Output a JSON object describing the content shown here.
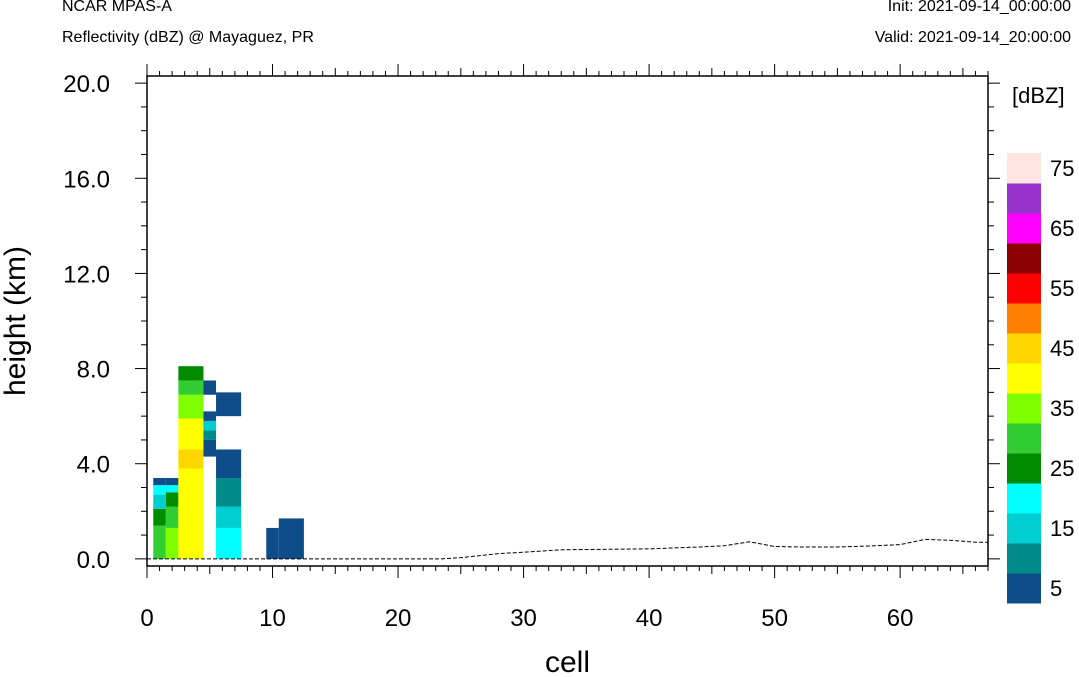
{
  "header": {
    "model": "NCAR MPAS-A",
    "field": "Reflectivity (dBZ) @ Mayaguez, PR",
    "init": "Init: 2021-09-14_00:00:00",
    "valid": "Valid: 2021-09-14_20:00:00"
  },
  "chart_data": {
    "type": "heatmap",
    "title": "Reflectivity (dBZ) @ Mayaguez, PR",
    "xlabel": "cell",
    "ylabel": "height (km)",
    "xlim": [
      0,
      67
    ],
    "ylim": [
      -0.3,
      20.3
    ],
    "x_ticks": [
      0,
      10,
      20,
      30,
      40,
      50,
      60
    ],
    "y_ticks": [
      0.0,
      4.0,
      8.0,
      12.0,
      16.0,
      20.0
    ],
    "x_tick_labels": [
      "0",
      "10",
      "20",
      "30",
      "40",
      "50",
      "60"
    ],
    "y_tick_labels": [
      "0.0",
      "4.0",
      "8.0",
      "12.0",
      "16.0",
      "20.0"
    ],
    "colorbar": {
      "unit_label": "[dBZ]",
      "bounds": [
        0,
        5,
        10,
        15,
        20,
        25,
        30,
        35,
        40,
        45,
        50,
        55,
        60,
        65,
        70,
        75
      ],
      "colors": [
        "#0f4c8a",
        "#008b8b",
        "#00ced1",
        "#00ffff",
        "#008b00",
        "#32cd32",
        "#7fff00",
        "#ffff00",
        "#ffd700",
        "#ff7f00",
        "#ff0000",
        "#8b0000",
        "#ff00ff",
        "#9932cc",
        "#ffe4e1"
      ],
      "tick_labels": [
        "5",
        "15",
        "25",
        "35",
        "45",
        "55",
        "65",
        "75"
      ]
    },
    "cells": [
      {
        "x0": 0.5,
        "x1": 1.5,
        "y0": 0.0,
        "y1": 1.4,
        "dbz": 28
      },
      {
        "x0": 0.5,
        "x1": 1.5,
        "y0": 1.4,
        "y1": 2.1,
        "dbz": 23
      },
      {
        "x0": 0.5,
        "x1": 1.5,
        "y0": 2.1,
        "y1": 2.7,
        "dbz": 13
      },
      {
        "x0": 0.5,
        "x1": 1.5,
        "y0": 2.7,
        "y1": 3.1,
        "dbz": 18
      },
      {
        "x0": 0.5,
        "x1": 1.5,
        "y0": 3.1,
        "y1": 3.4,
        "dbz": 3
      },
      {
        "x0": 1.5,
        "x1": 2.5,
        "y0": 0.0,
        "y1": 1.3,
        "dbz": 33
      },
      {
        "x0": 1.5,
        "x1": 2.5,
        "y0": 1.3,
        "y1": 2.2,
        "dbz": 28
      },
      {
        "x0": 1.5,
        "x1": 2.5,
        "y0": 2.2,
        "y1": 2.8,
        "dbz": 23
      },
      {
        "x0": 1.5,
        "x1": 2.5,
        "y0": 2.8,
        "y1": 3.1,
        "dbz": 18
      },
      {
        "x0": 1.5,
        "x1": 2.5,
        "y0": 3.1,
        "y1": 3.4,
        "dbz": 3
      },
      {
        "x0": 2.5,
        "x1": 4.5,
        "y0": 0.0,
        "y1": 3.8,
        "dbz": 38
      },
      {
        "x0": 2.5,
        "x1": 4.5,
        "y0": 3.8,
        "y1": 4.6,
        "dbz": 43
      },
      {
        "x0": 2.5,
        "x1": 4.5,
        "y0": 4.6,
        "y1": 5.9,
        "dbz": 38
      },
      {
        "x0": 2.5,
        "x1": 4.5,
        "y0": 5.9,
        "y1": 6.9,
        "dbz": 33
      },
      {
        "x0": 2.5,
        "x1": 4.5,
        "y0": 6.9,
        "y1": 7.5,
        "dbz": 28
      },
      {
        "x0": 2.5,
        "x1": 4.5,
        "y0": 7.5,
        "y1": 8.1,
        "dbz": 23
      },
      {
        "x0": 4.5,
        "x1": 5.5,
        "y0": 4.3,
        "y1": 5.0,
        "dbz": 3
      },
      {
        "x0": 4.5,
        "x1": 5.5,
        "y0": 5.0,
        "y1": 5.4,
        "dbz": 8
      },
      {
        "x0": 4.5,
        "x1": 5.5,
        "y0": 5.4,
        "y1": 5.8,
        "dbz": 13
      },
      {
        "x0": 4.5,
        "x1": 5.5,
        "y0": 5.8,
        "y1": 6.2,
        "dbz": 3
      },
      {
        "x0": 4.5,
        "x1": 5.5,
        "y0": 6.9,
        "y1": 7.5,
        "dbz": 3
      },
      {
        "x0": 5.5,
        "x1": 7.5,
        "y0": 0.0,
        "y1": 1.3,
        "dbz": 18
      },
      {
        "x0": 5.5,
        "x1": 7.5,
        "y0": 1.3,
        "y1": 2.2,
        "dbz": 13
      },
      {
        "x0": 5.5,
        "x1": 7.5,
        "y0": 2.2,
        "y1": 3.4,
        "dbz": 8
      },
      {
        "x0": 5.5,
        "x1": 7.5,
        "y0": 3.4,
        "y1": 4.6,
        "dbz": 3
      },
      {
        "x0": 5.5,
        "x1": 7.5,
        "y0": 6.0,
        "y1": 7.0,
        "dbz": 3
      },
      {
        "x0": 9.5,
        "x1": 10.5,
        "y0": 0.0,
        "y1": 1.3,
        "dbz": 3
      },
      {
        "x0": 10.5,
        "x1": 12.5,
        "y0": 0.0,
        "y1": 1.7,
        "dbz": 3
      }
    ],
    "terrain": {
      "x": [
        0,
        23.5,
        25,
        28,
        30,
        33,
        36,
        40,
        44,
        46,
        48,
        50,
        52,
        55,
        58,
        60,
        62,
        64,
        66,
        67
      ],
      "y": [
        0.0,
        0.0,
        0.05,
        0.22,
        0.28,
        0.38,
        0.4,
        0.42,
        0.5,
        0.55,
        0.72,
        0.52,
        0.5,
        0.5,
        0.55,
        0.6,
        0.82,
        0.78,
        0.7,
        0.7
      ]
    }
  }
}
